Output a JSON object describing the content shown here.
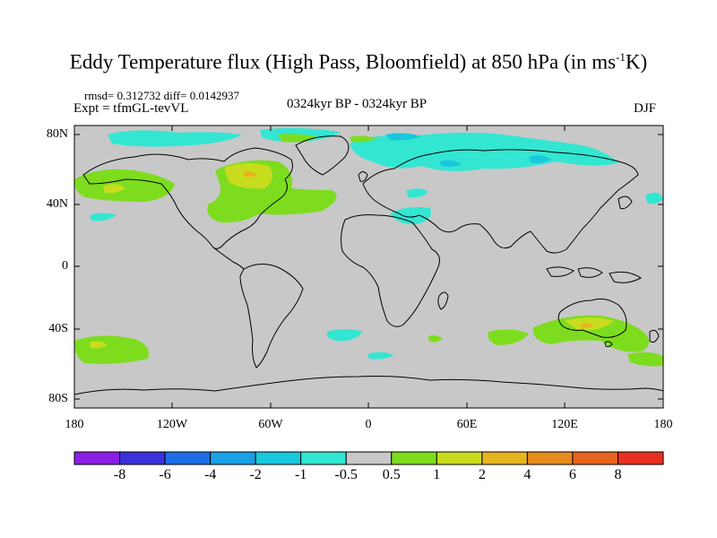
{
  "title_main": "Eddy Temperature flux (High Pass, Bloomfield) at 850 hPa (in ms",
  "title_sup": "-1",
  "title_end": "K)",
  "stats_line": "rmsd= 0.312732 diff= 0.0142937",
  "expt_line": "Expt = tfmGL-tevVL",
  "period_line": "0324kyr BP - 0324kyr BP",
  "season": "DJF",
  "lat_labels": [
    "80N",
    "40N",
    "0",
    "40S",
    "80S"
  ],
  "lon_labels": [
    "180",
    "120W",
    "60W",
    "0",
    "60E",
    "120E",
    "180"
  ],
  "colorbar": {
    "colors": [
      "#8c1ee6",
      "#3c32dc",
      "#1e6ee6",
      "#19a0e6",
      "#19c8dc",
      "#32e6d2",
      "#c8c8c8",
      "#7ddc1e",
      "#c8dc1e",
      "#e6b41e",
      "#e68c1e",
      "#e6641e",
      "#e6321e"
    ],
    "labels": [
      "-8",
      "-6",
      "-4",
      "-2",
      "-1",
      "-0.5",
      "0.5",
      "1",
      "2",
      "4",
      "6",
      "8"
    ]
  },
  "colors": {
    "land_sea_background": "#c8c8c8",
    "coast": "#000000"
  }
}
